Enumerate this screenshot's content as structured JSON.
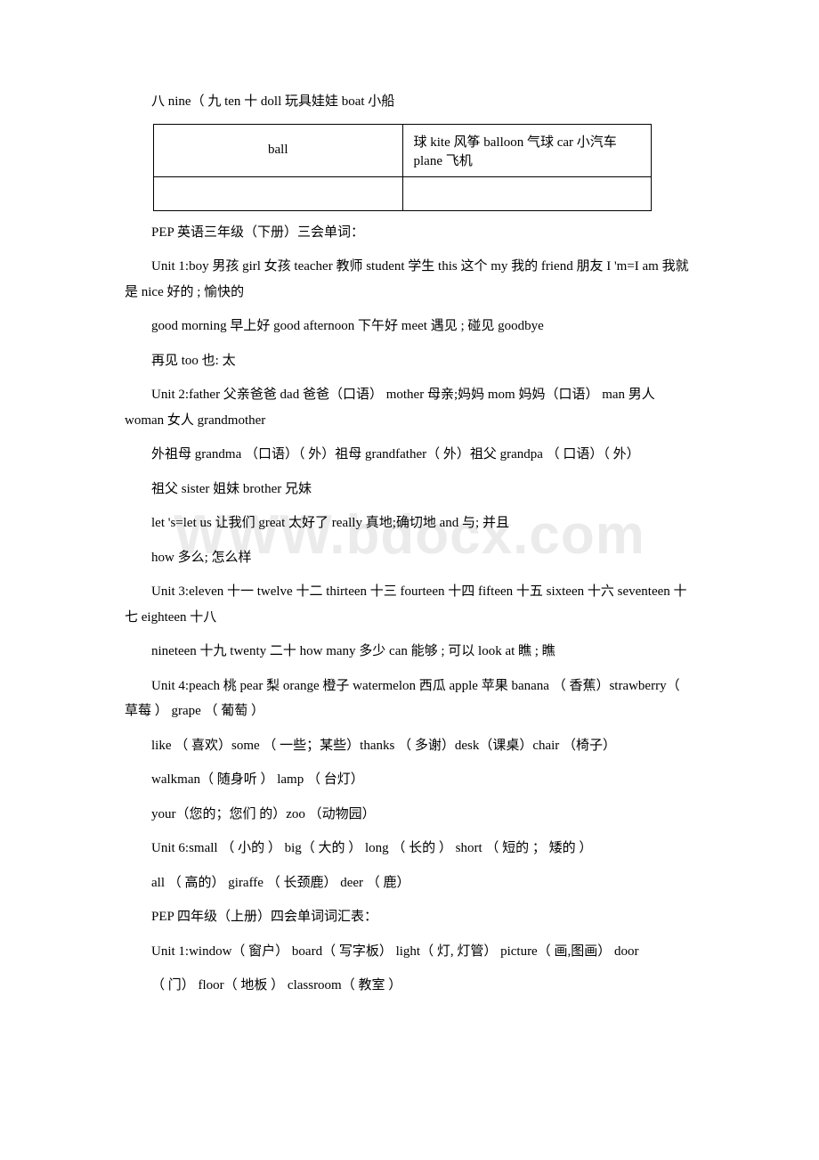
{
  "watermark": "WWW.bdocx.com",
  "p1": "八 nine（ 九 ten 十 doll 玩具娃娃 boat 小船",
  "table": {
    "r1c1": "ball",
    "r1c2": "球 kite 风筝 balloon 气球 car 小汽车 plane 飞机",
    "r2c1": "",
    "r2c2": ""
  },
  "p2": "PEP 英语三年级（下册）三会单词：",
  "p3": "Unit 1:boy 男孩 girl 女孩 teacher 教师 student 学生 this 这个 my 我的 friend 朋友 I 'm=I am 我就是 nice 好的 ; 愉快的",
  "p4": "good morning 早上好 good afternoon 下午好 meet 遇见 ; 碰见 goodbye",
  "p5": "再见 too 也: 太",
  "p6": "Unit 2:father 父亲爸爸 dad 爸爸（口语） mother 母亲;妈妈 mom 妈妈（口语） man 男人 woman 女人 grandmother",
  "p7": "外祖母 grandma （口语）（ 外）祖母 grandfather（ 外）祖父 grandpa （ 口语）（ 外）",
  "p8": "祖父 sister 姐妹 brother 兄妹",
  "p9": "let 's=let us 让我们 great 太好了 really 真地;确切地 and 与; 并且",
  "p10": "how 多么; 怎么样",
  "p11": "Unit 3:eleven 十一 twelve 十二 thirteen 十三 fourteen 十四 fifteen 十五 sixteen 十六 seventeen 十七 eighteen 十八",
  "p12": "nineteen 十九 twenty 二十 how many 多少 can 能够 ; 可以 look at 瞧 ; 瞧",
  "p13": "Unit 4:peach 桃 pear 梨 orange 橙子 watermelon 西瓜 apple 苹果 banana （ 香蕉）strawberry（ 草莓 ） grape （ 葡萄 ）",
  "p14": "like （ 喜欢）some （ 一些；某些）thanks （ 多谢）desk（课桌）chair （椅子）",
  "p15": "walkman（ 随身听 ） lamp （ 台灯）",
  "p16": "your（您的；您们 的）zoo （动物园）",
  "p17": "Unit 6:small （ 小的 ） big（ 大的 ） long （ 长的 ） short （ 短的 ； 矮的 ）",
  "p18": "all （ 高的） giraffe （ 长颈鹿） deer （ 鹿）",
  "p19": "PEP 四年级（上册）四会单词词汇表：",
  "p20": "Unit 1:window（ 窗户） board（ 写字板） light（ 灯, 灯管） picture（ 画,图画） door",
  "p21": "（ 门） floor（ 地板 ） classroom（ 教室 ）"
}
